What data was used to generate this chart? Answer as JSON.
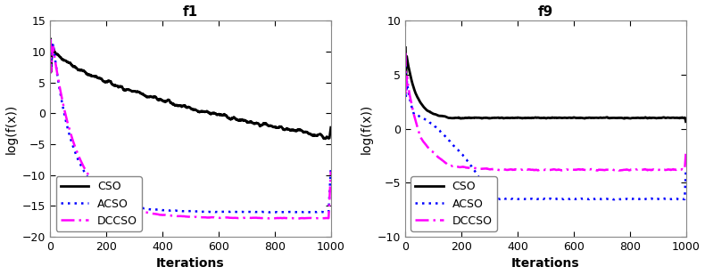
{
  "f1": {
    "title": "f1",
    "xlabel": "Iterations",
    "ylabel": "log(f(x))",
    "xlim": [
      0,
      1000
    ],
    "ylim": [
      -20,
      15
    ],
    "yticks": [
      -20,
      -15,
      -10,
      -5,
      0,
      5,
      10,
      15
    ],
    "xticks": [
      0,
      200,
      400,
      600,
      800,
      1000
    ]
  },
  "f9": {
    "title": "f9",
    "xlabel": "Iterations",
    "ylabel": "log(f(x))",
    "xlim": [
      0,
      1000
    ],
    "ylim": [
      -10,
      10
    ],
    "yticks": [
      -10,
      -5,
      0,
      5,
      10
    ],
    "xticks": [
      0,
      200,
      400,
      600,
      800,
      1000
    ]
  },
  "CSO_color": "#000000",
  "ACSO_color": "#0000FF",
  "DCCSO_color": "#FF00FF",
  "linewidth": 1.8,
  "background_color": "#ffffff",
  "title_fontsize": 11,
  "label_fontsize": 10,
  "tick_fontsize": 9,
  "legend_fontsize": 9
}
